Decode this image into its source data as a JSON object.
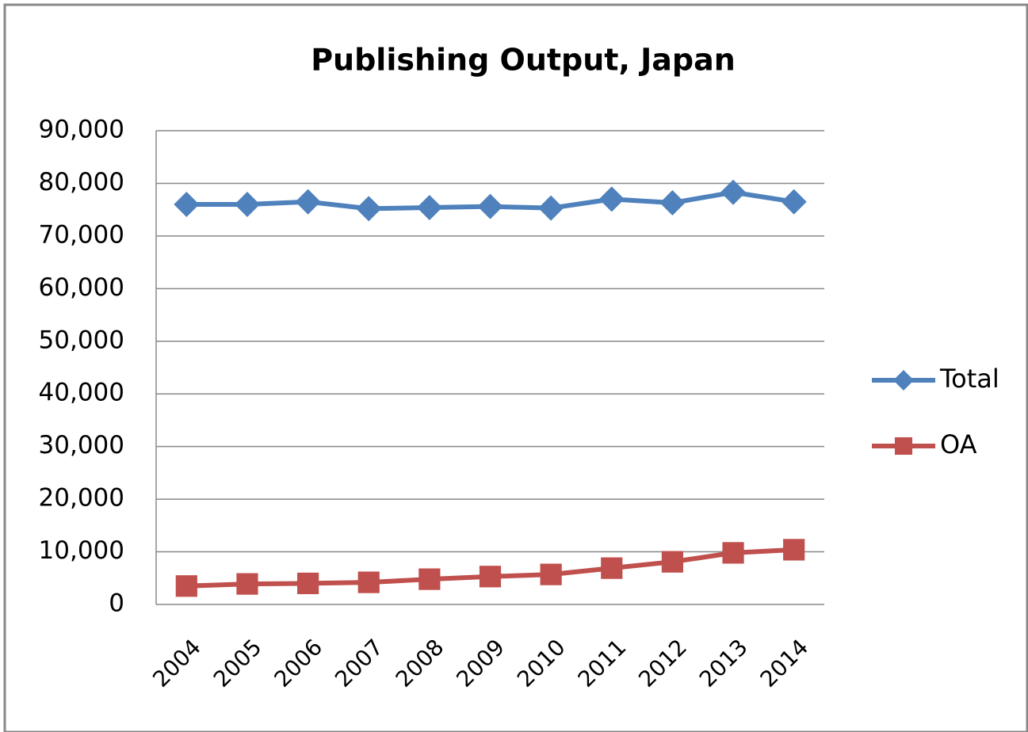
{
  "chart_data": {
    "type": "line",
    "title": "Publishing Output, Japan",
    "categories": [
      "2004",
      "2005",
      "2006",
      "2007",
      "2008",
      "2009",
      "2010",
      "2011",
      "2012",
      "2013",
      "2014"
    ],
    "series": [
      {
        "name": "Total",
        "color": "#4f81bd",
        "marker": "diamond",
        "values": [
          76000,
          76000,
          76500,
          75200,
          75400,
          75600,
          75300,
          77000,
          76300,
          78300,
          76500
        ]
      },
      {
        "name": "OA",
        "color": "#c0504d",
        "marker": "square",
        "values": [
          3500,
          3900,
          4000,
          4200,
          4800,
          5300,
          5700,
          6900,
          8100,
          9800,
          10400
        ]
      }
    ],
    "ylim": [
      0,
      90000
    ],
    "yticks": [
      0,
      {
        "value": 10000,
        "label": "10,000"
      },
      {
        "value": 20000,
        "label": "20,000"
      },
      {
        "value": 30000,
        "label": "30,000"
      },
      {
        "value": 40000,
        "label": "40,000"
      },
      {
        "value": 50000,
        "label": "50,000"
      },
      {
        "value": 60000,
        "label": "60,000"
      },
      {
        "value": 70000,
        "label": "70,000"
      },
      {
        "value": 80000,
        "label": "80,000"
      },
      {
        "value": 90000,
        "label": "90,000"
      }
    ],
    "grid": true,
    "legend": "right"
  }
}
